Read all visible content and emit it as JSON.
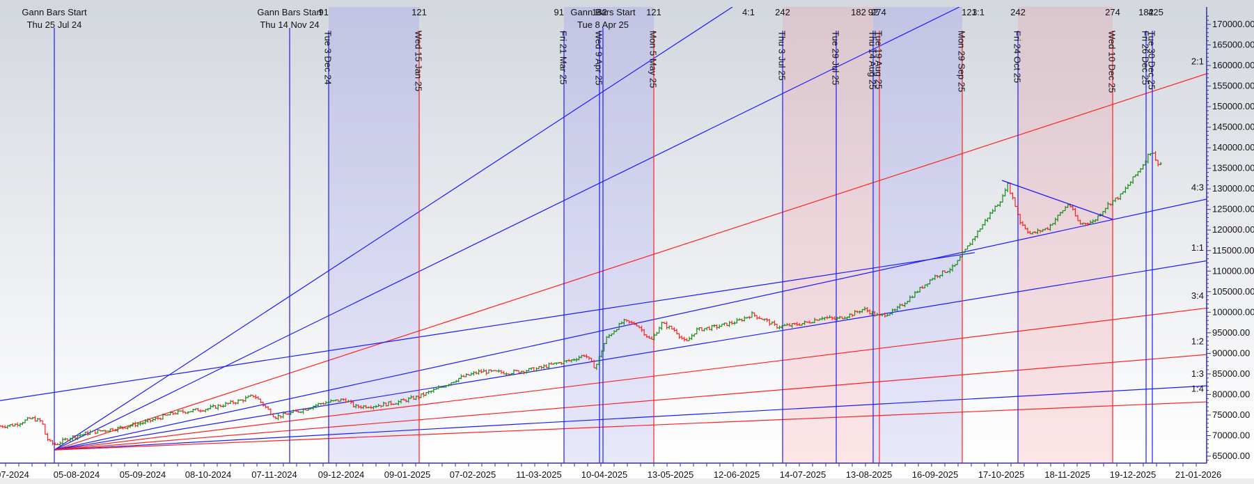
{
  "chart_data": {
    "type": "bar",
    "subtype": "ohlc-price-chart-with-gann-fan",
    "title": "",
    "xlabel": "",
    "ylabel": "",
    "ylim": [
      63000,
      172000
    ],
    "grid": false,
    "y_ticks": [
      "170000.00",
      "165000.00",
      "160000.00",
      "155000.00",
      "150000.00",
      "145000.00",
      "140000.00",
      "135000.00",
      "130000.00",
      "125000.00",
      "120000.00",
      "115000.00",
      "110000.00",
      "105000.00",
      "100000.00",
      "95000.00",
      "90000.00",
      "85000.00",
      "80000.00",
      "75000.00",
      "70000.00",
      "65000.00"
    ],
    "x_ticks": [
      "07-2024",
      "05-08-2024",
      "05-09-2024",
      "08-10-2024",
      "07-11-2024",
      "09-12-2024",
      "09-01-2025",
      "07-02-2025",
      "11-03-2025",
      "10-04-2025",
      "13-05-2025",
      "12-06-2025",
      "14-07-2025",
      "13-08-2025",
      "16-09-2025",
      "17-10-2025",
      "18-11-2025",
      "19-12-2025",
      "21-01-2026"
    ],
    "gann_fan": {
      "origin": {
        "date": "Thu 25 Jul 24",
        "price": 66500
      },
      "angles": [
        {
          "name": "4:1",
          "color": "#1a1aff",
          "label_pos": "top"
        },
        {
          "name": "3:1",
          "color": "#1a1aff",
          "label_pos": "top"
        },
        {
          "name": "2:1",
          "color": "#ff2020",
          "label_pos": "right"
        },
        {
          "name": "4:3",
          "color": "#1a1aff",
          "label_pos": "right"
        },
        {
          "name": "1:1",
          "color": "#1a1aff",
          "label_pos": "right"
        },
        {
          "name": "3:4",
          "color": "#ff2020",
          "label_pos": "right"
        },
        {
          "name": "1:2",
          "color": "#ff2020",
          "label_pos": "right"
        },
        {
          "name": "1:3",
          "color": "#1a1aff",
          "label_pos": "right"
        },
        {
          "name": "1:4",
          "color": "#ff2020",
          "label_pos": "right"
        }
      ]
    },
    "gann_bar_starts": [
      {
        "title": "Gann Bars Start",
        "date": "Thu 25 Jul 24"
      },
      {
        "title": "Gann Bars Start",
        "date": "Thu 14 Nov 24"
      },
      {
        "title": "Gann Bars Start",
        "date": "Tue 8 Apr 25"
      }
    ],
    "time_markers": [
      {
        "date": "Tue 3 Dec 24",
        "count": "91",
        "color": "blue"
      },
      {
        "date": "Wed 15 Jan 25",
        "count": "121",
        "color": "red"
      },
      {
        "date": "Fri 21 Mar 25",
        "count": "91",
        "color": "blue"
      },
      {
        "date": "Wed 9 Apr 25",
        "count": "182",
        "color": "blue"
      },
      {
        "date": "Mon 5 May 25",
        "count": "121",
        "color": "red"
      },
      {
        "date": "Thu 3 Jul 25",
        "count": "242",
        "color": "blue"
      },
      {
        "date": "Tue 29 Jul 25",
        "count": "182",
        "color": "blue"
      },
      {
        "date": "Thu 14 Aug 25",
        "count": "92",
        "color": "blue"
      },
      {
        "date": "Tue 19 Aug 25",
        "count": "274",
        "color": "red"
      },
      {
        "date": "Mon 29 Sep 25",
        "count": "121",
        "color": "red"
      },
      {
        "date": "Fri 24 Oct 25",
        "count": "242",
        "color": "blue"
      },
      {
        "date": "Wed 10 Dec 25",
        "count": "274",
        "color": "red"
      },
      {
        "date": "Fri 26 Dec 25",
        "count": "182",
        "color": "blue"
      },
      {
        "date": "Tue 30 Dec 25",
        "count": "425",
        "color": "blue"
      }
    ],
    "shaded_zones": [
      {
        "from": "Tue 3 Dec 24",
        "to": "Wed 15 Jan 25",
        "color": "blue"
      },
      {
        "from": "Fri 21 Mar 25",
        "to": "Mon 5 May 25",
        "color": "blue"
      },
      {
        "from": "Thu 3 Jul 25",
        "to": "Tue 19 Aug 25",
        "color": "red"
      },
      {
        "from": "Thu 14 Aug 25",
        "to": "Mon 29 Sep 25",
        "color": "blue"
      },
      {
        "from": "Fri 24 Oct 25",
        "to": "Wed 10 Dec 25",
        "color": "red"
      }
    ],
    "price_series_approx": {
      "dates": [
        "Jul-2024",
        "05-08-2024",
        "05-09-2024",
        "08-10-2024",
        "07-11-2024",
        "09-12-2024",
        "09-01-2025",
        "07-02-2025",
        "11-03-2025",
        "10-04-2025",
        "13-05-2025",
        "12-06-2025",
        "14-07-2025",
        "13-08-2025",
        "16-09-2025",
        "17-10-2025",
        "18-11-2025",
        "19-12-2025",
        "Jan-2026"
      ],
      "close": [
        72500,
        68500,
        71500,
        75500,
        77000,
        76500,
        78000,
        84500,
        86000,
        93000,
        96500,
        99500,
        97500,
        99000,
        110000,
        125000,
        122000,
        132000,
        136000
      ]
    },
    "annotations": [
      "triangle pattern Oct–Dec 2025",
      "price peak ~140000 late Dec 2025"
    ]
  },
  "colors": {
    "blue": "#1a1aff",
    "red": "#ff2020",
    "up": "#1a8a1a",
    "down": "#ff2020",
    "zone_blue": "#c8c8f0",
    "zone_red": "#f3cfd4",
    "axis": "#3030a0"
  }
}
